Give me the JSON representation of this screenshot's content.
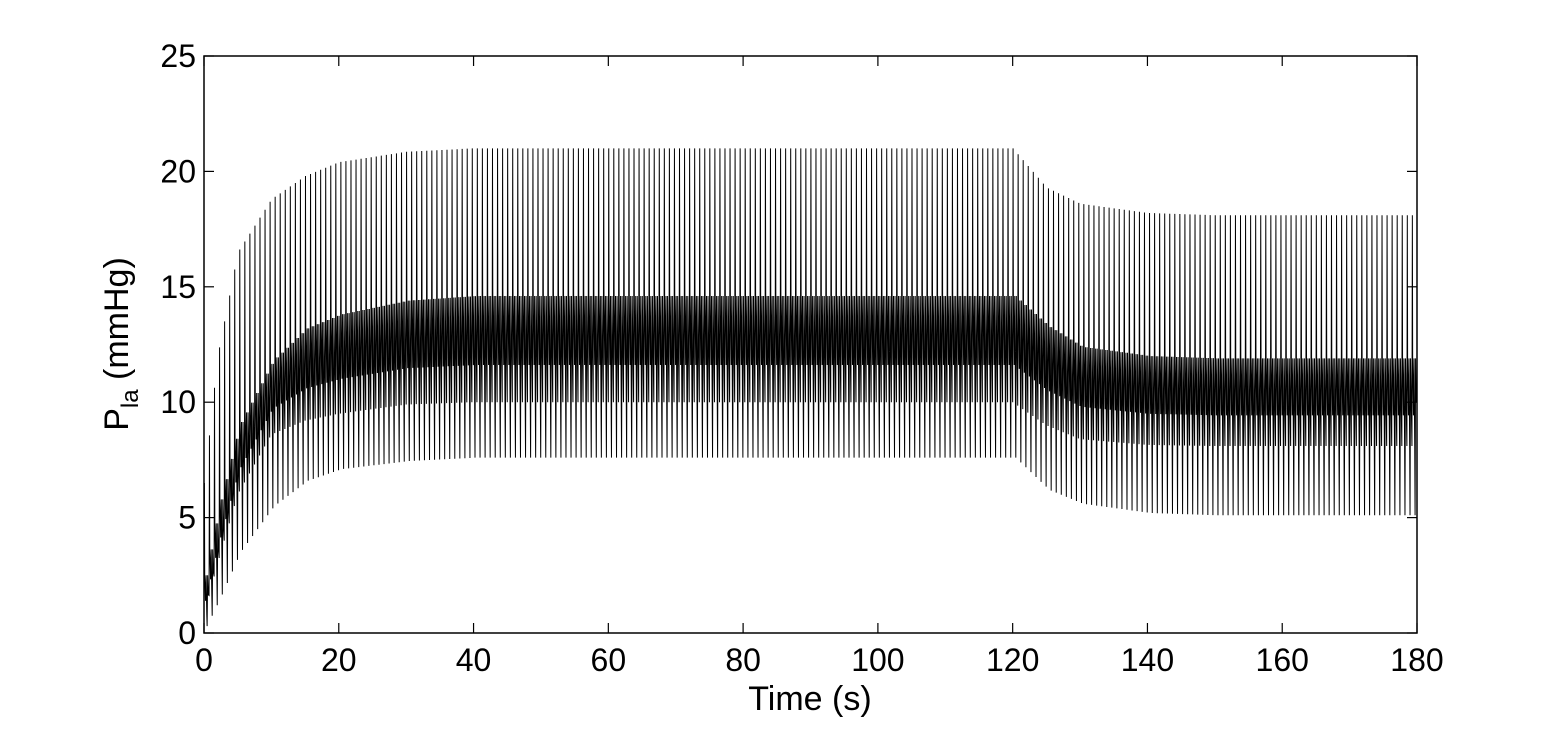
{
  "chart_data": {
    "type": "line",
    "xlabel": "Time (s)",
    "ylabel": {
      "main": "P",
      "subscript": "la",
      "unit": " (mmHg)"
    },
    "xlim": [
      0,
      180
    ],
    "ylim": [
      0,
      25
    ],
    "xticks": [
      0,
      20,
      40,
      60,
      80,
      100,
      120,
      140,
      160,
      180
    ],
    "yticks": [
      0,
      5,
      10,
      15,
      20,
      25
    ],
    "grid": false,
    "legend": "none",
    "line_color": "#000000",
    "series": [
      {
        "description_points": "envelope of oscillating pressure signal",
        "x": [
          0,
          2,
          5,
          10,
          15,
          20,
          30,
          40,
          120,
          125,
          130,
          140,
          150,
          180
        ],
        "upper_envelope": [
          6.5,
          12.0,
          16.5,
          18.8,
          19.8,
          20.4,
          20.85,
          21.0,
          21.0,
          19.3,
          18.6,
          18.2,
          18.1,
          18.1
        ],
        "lower_envelope": [
          0.3,
          1.5,
          3.5,
          5.5,
          6.6,
          7.1,
          7.45,
          7.6,
          7.6,
          6.2,
          5.6,
          5.2,
          5.1,
          5.1
        ],
        "band_upper": [
          2.5,
          5.5,
          9.0,
          11.8,
          13.2,
          13.8,
          14.4,
          14.6,
          14.6,
          13.3,
          12.4,
          12.0,
          11.9,
          11.9
        ],
        "band_lower": [
          0.8,
          3.0,
          6.0,
          8.6,
          9.2,
          9.5,
          9.9,
          10.0,
          10.0,
          9.0,
          8.4,
          8.15,
          8.1,
          8.1
        ]
      }
    ]
  }
}
